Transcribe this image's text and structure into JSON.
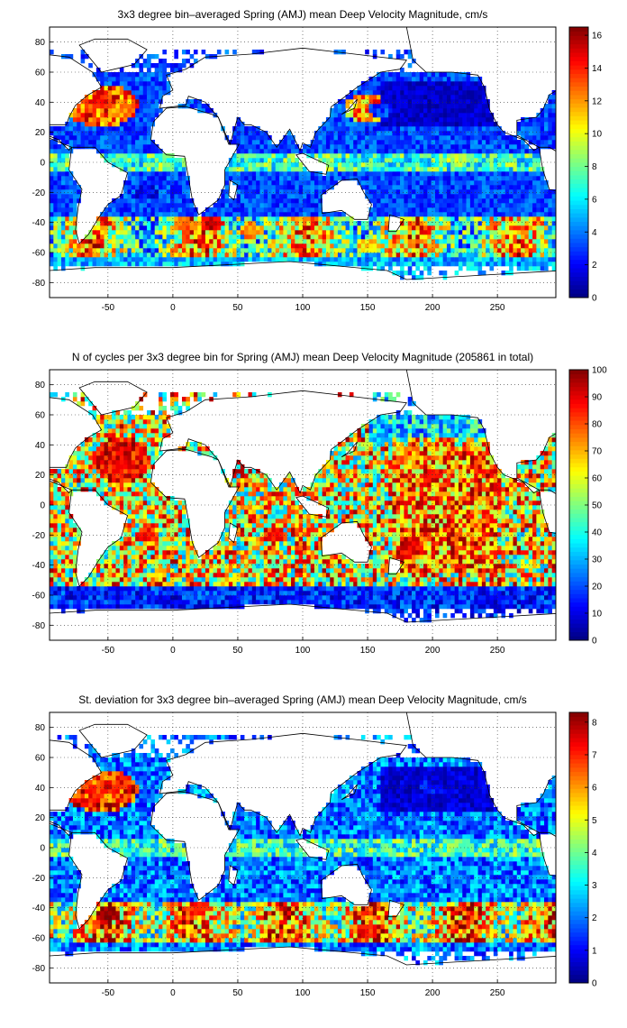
{
  "chart_data": [
    {
      "type": "heatmap",
      "title": "3x3 degree bin–averaged Spring (AMJ) mean Deep Velocity Magnitude, cm/s",
      "xlim": [
        -95,
        295
      ],
      "ylim": [
        -90,
        90
      ],
      "xticks": [
        -50,
        0,
        50,
        100,
        150,
        200,
        250
      ],
      "yticks": [
        -80,
        -60,
        -40,
        -20,
        0,
        20,
        40,
        60,
        80
      ],
      "colorbar": {
        "min": 0,
        "max": 16.5,
        "ticks": [
          0,
          2,
          4,
          6,
          8,
          10,
          12,
          14,
          16
        ],
        "colormap": "jet"
      },
      "grid": true,
      "bins": [
        {
          "x": -40,
          "y": 35,
          "v": 12
        },
        {
          "x": -55,
          "y": 40,
          "v": 14
        },
        {
          "x": 10,
          "y": -42,
          "v": 13
        },
        {
          "x": 30,
          "y": -40,
          "v": 15
        },
        {
          "x": 60,
          "y": -45,
          "v": 12
        },
        {
          "x": 150,
          "y": -55,
          "v": 11
        },
        {
          "x": 220,
          "y": 2,
          "v": 9
        },
        {
          "x": 160,
          "y": 35,
          "v": 3
        },
        {
          "x": 200,
          "y": 40,
          "v": 1
        },
        {
          "x": 230,
          "y": -20,
          "v": 3
        },
        {
          "x": 60,
          "y": -15,
          "v": 3
        },
        {
          "x": -20,
          "y": -20,
          "v": 2
        }
      ]
    },
    {
      "type": "heatmap",
      "title": "N of cycles per 3x3 degree bin for Spring (AMJ) mean Deep Velocity Magnitude (205861 in total)",
      "xlim": [
        -95,
        295
      ],
      "ylim": [
        -90,
        90
      ],
      "xticks": [
        -50,
        0,
        50,
        100,
        150,
        200,
        250
      ],
      "yticks": [
        -80,
        -60,
        -40,
        -20,
        0,
        20,
        40,
        60,
        80
      ],
      "colorbar": {
        "min": 0,
        "max": 100,
        "ticks": [
          0,
          10,
          20,
          30,
          40,
          50,
          60,
          70,
          80,
          90,
          100
        ],
        "colormap": "jet"
      },
      "grid": true,
      "bins": [
        {
          "x": -40,
          "y": 30,
          "v": 90
        },
        {
          "x": -20,
          "y": -20,
          "v": 85
        },
        {
          "x": 80,
          "y": -20,
          "v": 85
        },
        {
          "x": 200,
          "y": 20,
          "v": 90
        },
        {
          "x": 180,
          "y": -30,
          "v": 90
        },
        {
          "x": 160,
          "y": 45,
          "v": 30
        },
        {
          "x": 100,
          "y": -65,
          "v": 15
        },
        {
          "x": 0,
          "y": -65,
          "v": 10
        }
      ]
    },
    {
      "type": "heatmap",
      "title": "St. deviation for 3x3 degree bin–averaged Spring (AMJ) mean Deep Velocity Magnitude, cm/s",
      "xlim": [
        -95,
        295
      ],
      "ylim": [
        -90,
        90
      ],
      "xticks": [
        -50,
        0,
        50,
        100,
        150,
        200,
        250
      ],
      "yticks": [
        -80,
        -60,
        -40,
        -20,
        0,
        20,
        40,
        60,
        80
      ],
      "colorbar": {
        "min": 0,
        "max": 8.3,
        "ticks": [
          0,
          1,
          2,
          3,
          4,
          5,
          6,
          7,
          8
        ],
        "colormap": "jet"
      },
      "grid": true,
      "bins": [
        {
          "x": -50,
          "y": -45,
          "v": 8
        },
        {
          "x": 20,
          "y": -40,
          "v": 7
        },
        {
          "x": 150,
          "y": -55,
          "v": 7
        },
        {
          "x": -60,
          "y": 38,
          "v": 7
        },
        {
          "x": 200,
          "y": 40,
          "v": 1
        },
        {
          "x": 220,
          "y": -20,
          "v": 2
        },
        {
          "x": 220,
          "y": 2,
          "v": 4
        },
        {
          "x": 60,
          "y": -10,
          "v": 2
        }
      ]
    }
  ]
}
